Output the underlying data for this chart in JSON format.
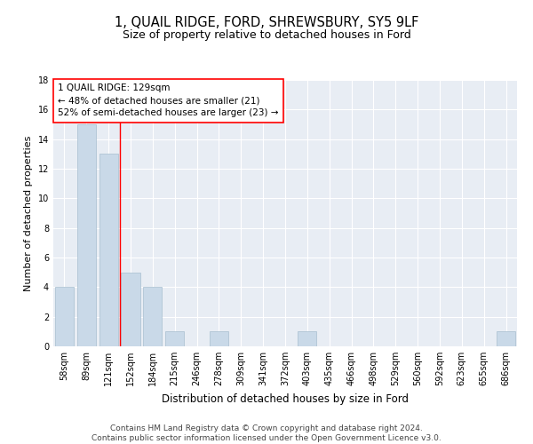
{
  "title": "1, QUAIL RIDGE, FORD, SHREWSBURY, SY5 9LF",
  "subtitle": "Size of property relative to detached houses in Ford",
  "xlabel": "Distribution of detached houses by size in Ford",
  "ylabel": "Number of detached properties",
  "categories": [
    "58sqm",
    "89sqm",
    "121sqm",
    "152sqm",
    "184sqm",
    "215sqm",
    "246sqm",
    "278sqm",
    "309sqm",
    "341sqm",
    "372sqm",
    "403sqm",
    "435sqm",
    "466sqm",
    "498sqm",
    "529sqm",
    "560sqm",
    "592sqm",
    "623sqm",
    "655sqm",
    "686sqm"
  ],
  "values": [
    4,
    15,
    13,
    5,
    4,
    1,
    0,
    1,
    0,
    0,
    0,
    1,
    0,
    0,
    0,
    0,
    0,
    0,
    0,
    0,
    1
  ],
  "bar_color": "#c9d9e8",
  "bar_edge_color": "#a8bfd0",
  "background_color": "#e8edf4",
  "grid_color": "#ffffff",
  "vline_x": 2.5,
  "vline_color": "red",
  "annotation_text": "1 QUAIL RIDGE: 129sqm\n← 48% of detached houses are smaller (21)\n52% of semi-detached houses are larger (23) →",
  "annotation_box_color": "white",
  "annotation_box_edge_color": "red",
  "ylim": [
    0,
    18
  ],
  "yticks": [
    0,
    2,
    4,
    6,
    8,
    10,
    12,
    14,
    16,
    18
  ],
  "footer_text": "Contains HM Land Registry data © Crown copyright and database right 2024.\nContains public sector information licensed under the Open Government Licence v3.0.",
  "title_fontsize": 10.5,
  "subtitle_fontsize": 9,
  "annotation_fontsize": 7.5,
  "footer_fontsize": 6.5,
  "ylabel_fontsize": 8,
  "xlabel_fontsize": 8.5,
  "tick_fontsize": 7
}
